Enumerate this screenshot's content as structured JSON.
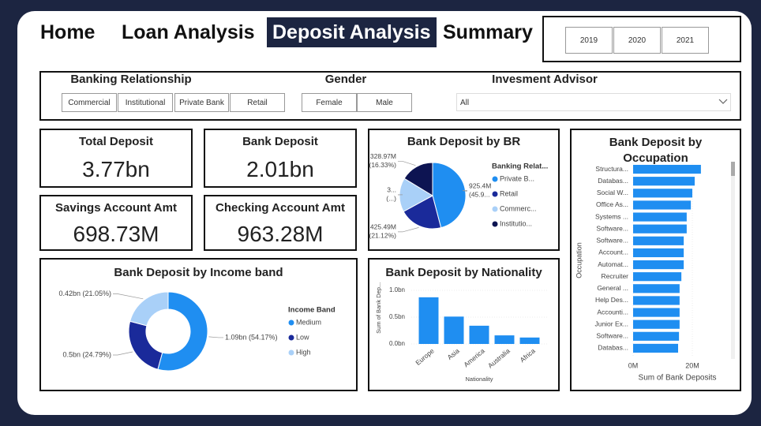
{
  "nav": {
    "tabs": [
      "Home",
      "Loan Analysis",
      "Deposit Analysis",
      "Summary"
    ],
    "active": 2,
    "years": [
      "2019",
      "2020",
      "2021"
    ]
  },
  "filters": {
    "banking_relationship": {
      "label": "Banking Relationship",
      "options": [
        "Commercial",
        "Institutional",
        "Private Bank",
        "Retail"
      ]
    },
    "gender": {
      "label": "Gender",
      "options": [
        "Female",
        "Male"
      ]
    },
    "investment_advisor": {
      "label": "Invesment Advisor",
      "value": "All"
    }
  },
  "kpis": [
    {
      "label": "Total Deposit",
      "value": "3.77bn"
    },
    {
      "label": "Bank Deposit",
      "value": "2.01bn"
    },
    {
      "label": "Savings Account Amt",
      "value": "698.73M"
    },
    {
      "label": "Checking Account Amt",
      "value": "963.28M"
    }
  ],
  "chart_data": [
    {
      "type": "pie",
      "title": "Bank Deposit by BR",
      "legend_title": "Banking Relat...",
      "categories": [
        "Private B...",
        "Retail",
        "Commerc...",
        "Institutio..."
      ],
      "values": [
        925.4,
        425.49,
        335,
        328.97
      ],
      "value_labels": [
        [
          "925.4M",
          "(45.9..."
        ],
        [
          "425.49M",
          "(21.12%)"
        ],
        [
          "3...",
          "(...)"
        ],
        [
          "328.97M",
          "(16.33%)"
        ]
      ],
      "colors": [
        "#1f8ef1",
        "#1a2a9a",
        "#a9d0f8",
        "#0d1452"
      ]
    },
    {
      "type": "donut",
      "title": "Bank Deposit by Income band",
      "legend_title": "Income Band",
      "categories": [
        "Medium",
        "Low",
        "High"
      ],
      "values": [
        1.09,
        0.5,
        0.42
      ],
      "value_labels": [
        "1.09bn (54.17%)",
        "0.5bn (24.79%)",
        "0.42bn (21.05%)"
      ],
      "colors": [
        "#1f8ef1",
        "#1a2a9a",
        "#a9d0f8"
      ]
    },
    {
      "type": "bar",
      "title": "Bank Deposit by Nationality",
      "x_label": "Nationality",
      "y_label": "Sum of Bank Dep...",
      "categories": [
        "Europe",
        "Asia",
        "America",
        "Australia",
        "Africa"
      ],
      "values": [
        0.87,
        0.51,
        0.34,
        0.16,
        0.12
      ],
      "color": "#1f8ef1",
      "ylim": [
        0,
        1.05
      ],
      "yticks": [
        {
          "value": 0,
          "label": "0.0bn"
        },
        {
          "value": 0.5,
          "label": "0.5bn"
        },
        {
          "value": 1,
          "label": "1.0bn"
        }
      ]
    },
    {
      "type": "hbar",
      "title": "Bank Deposit by Occupation",
      "x_label": "Sum of Bank Deposits",
      "y_label": "Occupation",
      "categories": [
        "Structura...",
        "Databas...",
        "Social W...",
        "Office As...",
        "Systems ...",
        "Software...",
        "Software...",
        "Account...",
        "Automat...",
        "Recruiter",
        "General ...",
        "Help Des...",
        "Accounti...",
        "Junior Ex...",
        "Software...",
        "Databas..."
      ],
      "values": [
        22.9,
        20.8,
        20,
        19.5,
        18.1,
        18.1,
        17.1,
        17.1,
        17.1,
        16.3,
        15.7,
        15.7,
        15.7,
        15.7,
        15.5,
        15.2
      ],
      "color": "#1f8ef1",
      "xlim": [
        0,
        31
      ],
      "xticks": [
        {
          "value": 0,
          "label": "0M"
        },
        {
          "value": 20,
          "label": "20M"
        }
      ]
    }
  ]
}
